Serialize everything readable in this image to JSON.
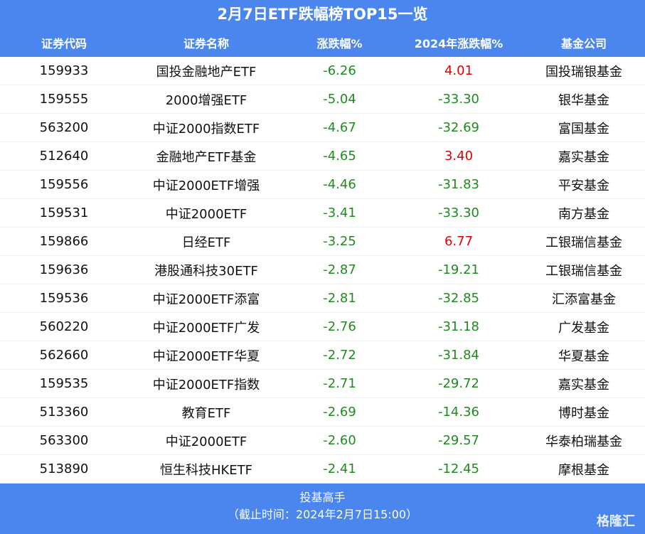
{
  "header": {
    "title": "2月7日ETF跌幅榜TOP15一览"
  },
  "table": {
    "columns": [
      "证券代码",
      "证券名称",
      "涨跌幅%",
      "2024年涨跌幅%",
      "基金公司"
    ],
    "rows": [
      [
        "159933",
        "国投金融地产ETF",
        "-6.26",
        "4.01",
        "国投瑞银基金"
      ],
      [
        "159555",
        "2000增强ETF",
        "-5.04",
        "-33.30",
        "银华基金"
      ],
      [
        "563200",
        "中证2000指数ETF",
        "-4.67",
        "-32.69",
        "富国基金"
      ],
      [
        "512640",
        "金融地产ETF基金",
        "-4.65",
        "3.40",
        "嘉实基金"
      ],
      [
        "159556",
        "中证2000ETF增强",
        "-4.46",
        "-31.83",
        "平安基金"
      ],
      [
        "159531",
        "中证2000ETF",
        "-3.41",
        "-33.30",
        "南方基金"
      ],
      [
        "159866",
        "日经ETF",
        "-3.25",
        "6.77",
        "工银瑞信基金"
      ],
      [
        "159636",
        "港股通科技30ETF",
        "-2.87",
        "-19.21",
        "工银瑞信基金"
      ],
      [
        "159536",
        "中证2000ETF添富",
        "-2.81",
        "-32.85",
        "汇添富基金"
      ],
      [
        "560220",
        "中证2000ETF广发",
        "-2.76",
        "-31.18",
        "广发基金"
      ],
      [
        "562660",
        "中证2000ETF华夏",
        "-2.72",
        "-31.84",
        "华夏基金"
      ],
      [
        "159535",
        "中证2000ETF指数",
        "-2.71",
        "-29.72",
        "嘉实基金"
      ],
      [
        "513360",
        "教育ETF",
        "-2.69",
        "-14.36",
        "博时基金"
      ],
      [
        "563300",
        "中证2000ETF",
        "-2.60",
        "-29.57",
        "华泰柏瑞基金"
      ],
      [
        "513890",
        "恒生科技HKETF",
        "-2.41",
        "-12.45",
        "摩根基金"
      ]
    ]
  },
  "footer": {
    "source": "投基高手",
    "note": "（截止时间：2024年2月7日15:00）",
    "watermark": "格隆汇"
  }
}
